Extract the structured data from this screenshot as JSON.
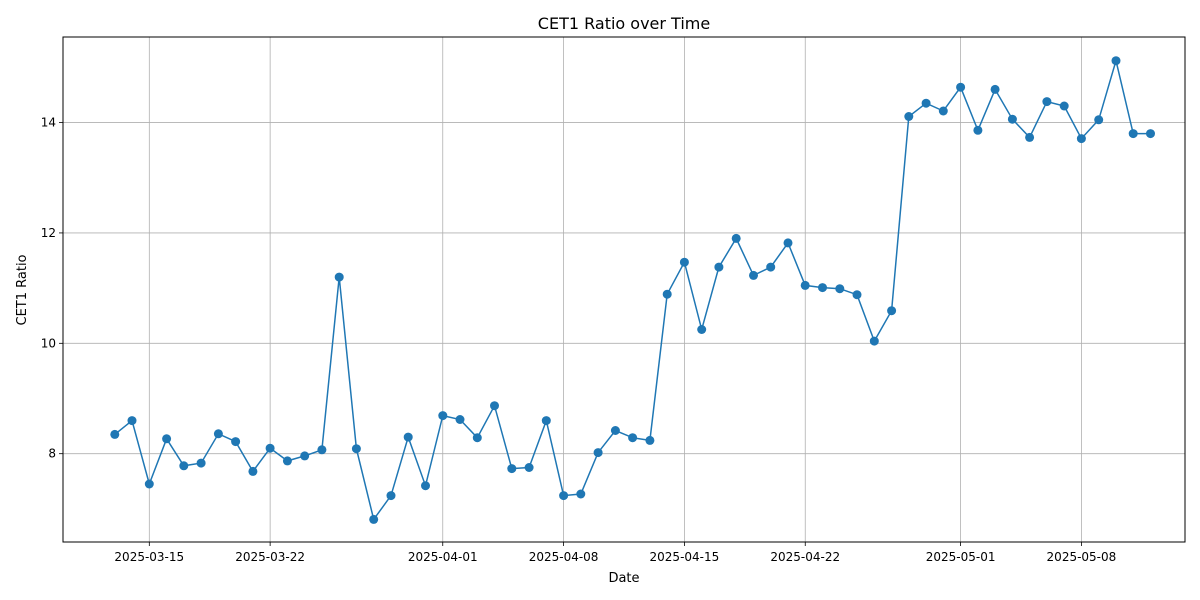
{
  "chart_data": {
    "type": "line",
    "title": "CET1 Ratio over Time",
    "xlabel": "Date",
    "ylabel": "CET1 Ratio",
    "grid": true,
    "line_color": "#1f77b4",
    "marker": "circle",
    "x_ticks": [
      "2025-03-15",
      "2025-03-22",
      "2025-04-01",
      "2025-04-08",
      "2025-04-15",
      "2025-04-22",
      "2025-05-01",
      "2025-05-08"
    ],
    "y_ticks": [
      8,
      10,
      12,
      14
    ],
    "xlim": [
      "2025-03-10",
      "2025-05-14"
    ],
    "ylim": [
      6.4,
      15.55
    ],
    "series": [
      {
        "x": [
          "2025-03-13",
          "2025-03-14",
          "2025-03-15",
          "2025-03-16",
          "2025-03-17",
          "2025-03-18",
          "2025-03-19",
          "2025-03-20",
          "2025-03-21",
          "2025-03-22",
          "2025-03-23",
          "2025-03-24",
          "2025-03-25",
          "2025-03-26",
          "2025-03-27",
          "2025-03-28",
          "2025-03-29",
          "2025-03-30",
          "2025-03-31",
          "2025-04-01",
          "2025-04-02",
          "2025-04-03",
          "2025-04-04",
          "2025-04-05",
          "2025-04-06",
          "2025-04-07",
          "2025-04-08",
          "2025-04-09",
          "2025-04-10",
          "2025-04-11",
          "2025-04-12",
          "2025-04-13",
          "2025-04-14",
          "2025-04-15",
          "2025-04-16",
          "2025-04-17",
          "2025-04-18",
          "2025-04-19",
          "2025-04-20",
          "2025-04-21",
          "2025-04-22",
          "2025-04-23",
          "2025-04-24",
          "2025-04-25",
          "2025-04-26",
          "2025-04-27",
          "2025-04-28",
          "2025-04-29",
          "2025-04-30",
          "2025-05-01",
          "2025-05-02",
          "2025-05-03",
          "2025-05-04",
          "2025-05-05",
          "2025-05-06",
          "2025-05-07",
          "2025-05-08",
          "2025-05-09",
          "2025-05-10",
          "2025-05-11",
          "2025-05-12"
        ],
        "values": [
          8.35,
          8.6,
          7.45,
          8.27,
          7.78,
          7.83,
          8.36,
          8.22,
          7.68,
          8.1,
          7.87,
          7.96,
          8.07,
          11.2,
          8.09,
          6.81,
          7.24,
          8.3,
          7.42,
          8.69,
          8.62,
          8.29,
          8.87,
          7.73,
          7.75,
          8.6,
          7.24,
          7.27,
          8.02,
          8.42,
          8.29,
          8.24,
          10.89,
          11.47,
          10.25,
          11.38,
          11.9,
          11.23,
          11.38,
          11.82,
          11.05,
          11.01,
          10.99,
          10.88,
          10.04,
          10.59,
          14.11,
          14.35,
          14.21,
          14.64,
          13.86,
          14.6,
          14.06,
          13.73,
          14.38,
          14.3,
          13.71,
          14.05,
          15.12,
          13.8,
          13.8
        ]
      }
    ]
  }
}
